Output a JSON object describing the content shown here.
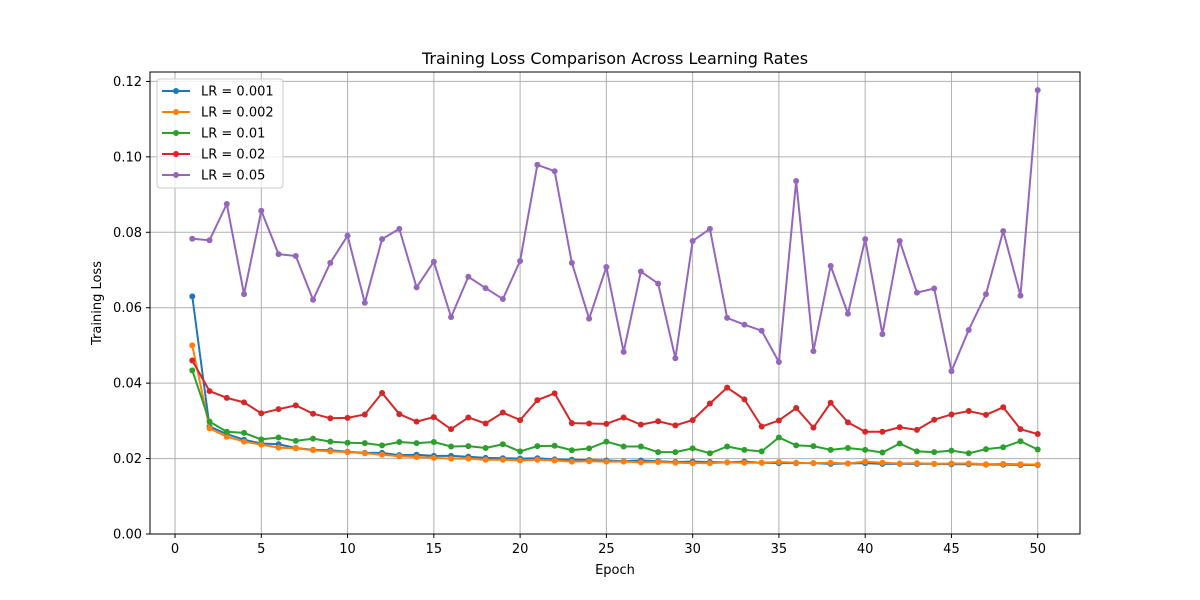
{
  "chart_data": {
    "type": "line",
    "title": "Training Loss Comparison Across Learning Rates",
    "xlabel": "Epoch",
    "ylabel": "Training Loss",
    "xlim": [
      -1.45,
      52.45
    ],
    "ylim": [
      0,
      0.1225
    ],
    "xticks": [
      0,
      5,
      10,
      15,
      20,
      25,
      30,
      35,
      40,
      45,
      50
    ],
    "yticks": [
      0.0,
      0.02,
      0.04,
      0.06,
      0.08,
      0.1,
      0.12
    ],
    "ytick_labels": [
      "0.00",
      "0.02",
      "0.04",
      "0.06",
      "0.08",
      "0.10",
      "0.12"
    ],
    "grid": true,
    "legend_position": "upper-left",
    "x": [
      1,
      2,
      3,
      4,
      5,
      6,
      7,
      8,
      9,
      10,
      11,
      12,
      13,
      14,
      15,
      16,
      17,
      18,
      19,
      20,
      21,
      22,
      23,
      24,
      25,
      26,
      27,
      28,
      29,
      30,
      31,
      32,
      33,
      34,
      35,
      36,
      37,
      38,
      39,
      40,
      41,
      42,
      43,
      44,
      45,
      46,
      47,
      48,
      49,
      50
    ],
    "series": [
      {
        "name": "LR = 0.001",
        "color": "#1f77b4",
        "values": [
          0.063,
          0.0285,
          0.0265,
          0.025,
          0.024,
          0.0238,
          0.0228,
          0.0223,
          0.0222,
          0.0218,
          0.0215,
          0.0215,
          0.0209,
          0.021,
          0.0207,
          0.0207,
          0.0205,
          0.0202,
          0.0201,
          0.02,
          0.0201,
          0.0198,
          0.0197,
          0.0196,
          0.0195,
          0.0193,
          0.0195,
          0.0193,
          0.0191,
          0.0192,
          0.0191,
          0.019,
          0.0192,
          0.0189,
          0.0188,
          0.0188,
          0.0188,
          0.0186,
          0.0187,
          0.0188,
          0.0186,
          0.0186,
          0.0186,
          0.0186,
          0.0185,
          0.0185,
          0.0184,
          0.0184,
          0.0183,
          0.0183
        ]
      },
      {
        "name": "LR = 0.002",
        "color": "#ff7f0e",
        "values": [
          0.05,
          0.028,
          0.0258,
          0.0245,
          0.0237,
          0.0229,
          0.0227,
          0.0222,
          0.0219,
          0.0217,
          0.0214,
          0.021,
          0.0206,
          0.0204,
          0.0202,
          0.02,
          0.02,
          0.0197,
          0.0197,
          0.0195,
          0.0197,
          0.0195,
          0.0192,
          0.0193,
          0.0192,
          0.0192,
          0.019,
          0.0191,
          0.0189,
          0.0188,
          0.0188,
          0.019,
          0.0189,
          0.0189,
          0.0191,
          0.0189,
          0.0188,
          0.0189,
          0.0187,
          0.0192,
          0.0189,
          0.0187,
          0.0188,
          0.0186,
          0.0187,
          0.0187,
          0.0185,
          0.0186,
          0.0185,
          0.0184
        ]
      },
      {
        "name": "LR = 0.01",
        "color": "#2ca02c",
        "values": [
          0.0434,
          0.0298,
          0.0271,
          0.0268,
          0.0251,
          0.0256,
          0.0247,
          0.0253,
          0.0245,
          0.0242,
          0.0241,
          0.0235,
          0.0244,
          0.0241,
          0.0244,
          0.0232,
          0.0233,
          0.0228,
          0.0238,
          0.0219,
          0.0233,
          0.0234,
          0.0222,
          0.0227,
          0.0245,
          0.0232,
          0.0232,
          0.0217,
          0.0217,
          0.0227,
          0.0214,
          0.0232,
          0.0223,
          0.0219,
          0.0256,
          0.0235,
          0.0233,
          0.0223,
          0.0228,
          0.0223,
          0.0216,
          0.024,
          0.0219,
          0.0217,
          0.0221,
          0.0214,
          0.0225,
          0.023,
          0.0246,
          0.0224
        ]
      },
      {
        "name": "LR = 0.02",
        "color": "#d62728",
        "values": [
          0.046,
          0.0379,
          0.0361,
          0.0349,
          0.032,
          0.0331,
          0.0341,
          0.0319,
          0.0307,
          0.0308,
          0.0317,
          0.0374,
          0.0318,
          0.0298,
          0.031,
          0.0278,
          0.0309,
          0.0293,
          0.0322,
          0.0302,
          0.0355,
          0.0373,
          0.0294,
          0.0293,
          0.0292,
          0.0309,
          0.029,
          0.0299,
          0.0288,
          0.0302,
          0.0346,
          0.0388,
          0.0357,
          0.0285,
          0.0301,
          0.0334,
          0.0282,
          0.0348,
          0.0296,
          0.0271,
          0.0271,
          0.0283,
          0.0276,
          0.0303,
          0.0317,
          0.0326,
          0.0316,
          0.0336,
          0.0278,
          0.0265
        ]
      },
      {
        "name": "LR = 0.05",
        "color": "#9467bd",
        "values": [
          0.0783,
          0.0779,
          0.0875,
          0.0636,
          0.0857,
          0.0742,
          0.0737,
          0.0621,
          0.0719,
          0.0791,
          0.0613,
          0.0782,
          0.0809,
          0.0654,
          0.0722,
          0.0575,
          0.0682,
          0.0652,
          0.0623,
          0.0724,
          0.0979,
          0.0962,
          0.0719,
          0.0571,
          0.0708,
          0.0483,
          0.0696,
          0.0664,
          0.0466,
          0.0777,
          0.0809,
          0.0573,
          0.0555,
          0.0539,
          0.0456,
          0.0936,
          0.0485,
          0.0711,
          0.0584,
          0.0782,
          0.053,
          0.0777,
          0.064,
          0.0651,
          0.0432,
          0.0541,
          0.0636,
          0.0803,
          0.0632,
          0.1177
        ]
      }
    ]
  }
}
